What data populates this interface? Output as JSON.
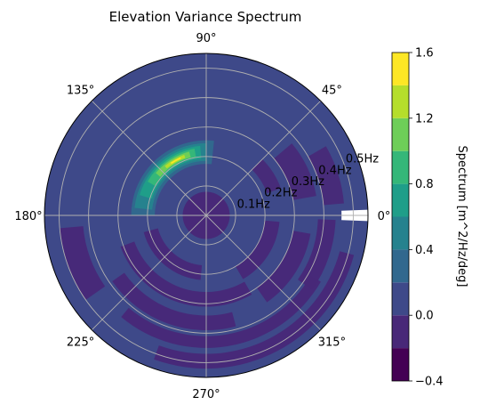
{
  "chart_data": {
    "type": "polar_contourf",
    "title": "Elevation Variance Spectrum",
    "angular_ticks": [
      "0°",
      "45°",
      "90°",
      "135°",
      "180°",
      "225°",
      "270°",
      "315°"
    ],
    "radial_ticks": [
      "0.1Hz",
      "0.2Hz",
      "0.3Hz",
      "0.4Hz",
      "0.5Hz"
    ],
    "radial_values": [
      0.1,
      0.2,
      0.3,
      0.4,
      0.5
    ],
    "rlim": [
      0,
      0.55
    ],
    "grid": true,
    "colorbar": {
      "label": "Spectrum [m^2/Hz/deg]",
      "ticks": [
        "−0.4",
        "0.0",
        "0.4",
        "0.8",
        "1.2",
        "1.6"
      ],
      "tick_values": [
        -0.4,
        0.0,
        0.4,
        0.8,
        1.2,
        1.6
      ],
      "range": [
        -0.4,
        1.6
      ],
      "colormap": "viridis",
      "levels": [
        -0.4,
        -0.2,
        0.0,
        0.2,
        0.4,
        0.6,
        0.8,
        1.0,
        1.2,
        1.4,
        1.6
      ],
      "level_colors": [
        "#440154",
        "#482878",
        "#3e4989",
        "#31688e",
        "#26828e",
        "#1f9e89",
        "#35b779",
        "#6ece58",
        "#b5de2b",
        "#fde725"
      ]
    },
    "background_level_color": "#3e4989",
    "features": [
      {
        "kind": "peak_arc",
        "note": "main wave energy ridge",
        "center_dir_deg": 118,
        "dir_span_deg": [
          92,
          170
        ],
        "freq_hz": 0.21,
        "peak_value": 1.5
      },
      {
        "kind": "negative_bands",
        "dir_span_deg": [
          190,
          355
        ],
        "freq_range_hz": [
          0.15,
          0.5
        ],
        "value": -0.15
      },
      {
        "kind": "negative_blob",
        "dir_span_deg": [
          0,
          360
        ],
        "freq_range_hz": [
          0.0,
          0.08
        ],
        "value": -0.1
      }
    ]
  }
}
